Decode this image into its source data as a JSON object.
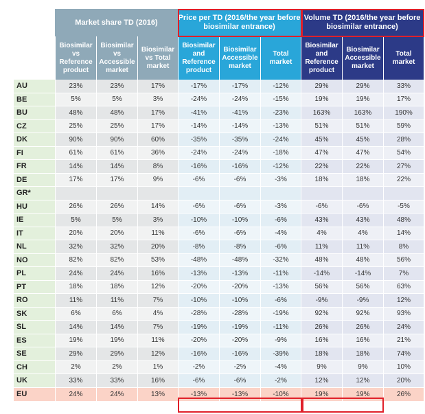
{
  "groups": [
    {
      "title": "Market share TD (2016)"
    },
    {
      "title": "Price per TD (2016/the year before biosimilar entrance)"
    },
    {
      "title": "Volume TD (2016/the year before biosimilar entrance)"
    }
  ],
  "subheaders": [
    "Biosimilar vs Reference product",
    "Biosimilar vs Accessible market",
    "Biosimilar vs Total market",
    "Biosimilar and Reference product",
    "Biosimilar Accessible market",
    "Total market",
    "Biosimilar and Reference product",
    "Biosimilar Accessible market",
    "Total market"
  ],
  "rows": [
    {
      "country": "AU",
      "values": [
        "23%",
        "23%",
        "17%",
        "-17%",
        "-17%",
        "-12%",
        "29%",
        "29%",
        "33%"
      ]
    },
    {
      "country": "BE",
      "values": [
        "5%",
        "5%",
        "3%",
        "-24%",
        "-24%",
        "-15%",
        "19%",
        "19%",
        "17%"
      ]
    },
    {
      "country": "BU",
      "values": [
        "48%",
        "48%",
        "17%",
        "-41%",
        "-41%",
        "-23%",
        "163%",
        "163%",
        "190%"
      ]
    },
    {
      "country": "CZ",
      "values": [
        "25%",
        "25%",
        "17%",
        "-14%",
        "-14%",
        "-13%",
        "51%",
        "51%",
        "59%"
      ]
    },
    {
      "country": "DK",
      "values": [
        "90%",
        "90%",
        "60%",
        "-35%",
        "-35%",
        "-24%",
        "45%",
        "45%",
        "28%"
      ]
    },
    {
      "country": "FI",
      "values": [
        "61%",
        "61%",
        "36%",
        "-24%",
        "-24%",
        "-18%",
        "47%",
        "47%",
        "54%"
      ]
    },
    {
      "country": "FR",
      "values": [
        "14%",
        "14%",
        "8%",
        "-16%",
        "-16%",
        "-12%",
        "22%",
        "22%",
        "27%"
      ]
    },
    {
      "country": "DE",
      "values": [
        "17%",
        "17%",
        "9%",
        "-6%",
        "-6%",
        "-3%",
        "18%",
        "18%",
        "22%"
      ]
    },
    {
      "country": "GR*",
      "values": [
        "",
        "",
        "",
        "",
        "",
        "",
        "",
        "",
        ""
      ]
    },
    {
      "country": "HU",
      "values": [
        "26%",
        "26%",
        "14%",
        "-6%",
        "-6%",
        "-3%",
        "-6%",
        "-6%",
        "-5%"
      ]
    },
    {
      "country": "IE",
      "values": [
        "5%",
        "5%",
        "3%",
        "-10%",
        "-10%",
        "-6%",
        "43%",
        "43%",
        "48%"
      ]
    },
    {
      "country": "IT",
      "values": [
        "20%",
        "20%",
        "11%",
        "-6%",
        "-6%",
        "-4%",
        "4%",
        "4%",
        "14%"
      ]
    },
    {
      "country": "NL",
      "values": [
        "32%",
        "32%",
        "20%",
        "-8%",
        "-8%",
        "-6%",
        "11%",
        "11%",
        "8%"
      ]
    },
    {
      "country": "NO",
      "values": [
        "82%",
        "82%",
        "53%",
        "-48%",
        "-48%",
        "-32%",
        "48%",
        "48%",
        "56%"
      ]
    },
    {
      "country": "PL",
      "values": [
        "24%",
        "24%",
        "16%",
        "-13%",
        "-13%",
        "-11%",
        "-14%",
        "-14%",
        "7%"
      ]
    },
    {
      "country": "PT",
      "values": [
        "18%",
        "18%",
        "12%",
        "-20%",
        "-20%",
        "-13%",
        "56%",
        "56%",
        "63%"
      ]
    },
    {
      "country": "RO",
      "values": [
        "11%",
        "11%",
        "7%",
        "-10%",
        "-10%",
        "-6%",
        "-9%",
        "-9%",
        "12%"
      ]
    },
    {
      "country": "SK",
      "values": [
        "6%",
        "6%",
        "4%",
        "-28%",
        "-28%",
        "-19%",
        "92%",
        "92%",
        "93%"
      ]
    },
    {
      "country": "SL",
      "values": [
        "14%",
        "14%",
        "7%",
        "-19%",
        "-19%",
        "-11%",
        "26%",
        "26%",
        "24%"
      ]
    },
    {
      "country": "ES",
      "values": [
        "19%",
        "19%",
        "11%",
        "-20%",
        "-20%",
        "-9%",
        "16%",
        "16%",
        "21%"
      ]
    },
    {
      "country": "SE",
      "values": [
        "29%",
        "29%",
        "12%",
        "-16%",
        "-16%",
        "-39%",
        "18%",
        "18%",
        "74%"
      ]
    },
    {
      "country": "CH",
      "values": [
        "2%",
        "2%",
        "1%",
        "-2%",
        "-2%",
        "-4%",
        "9%",
        "9%",
        "10%"
      ]
    },
    {
      "country": "UK",
      "values": [
        "33%",
        "33%",
        "16%",
        "-6%",
        "-6%",
        "-2%",
        "12%",
        "12%",
        "20%"
      ]
    }
  ],
  "eu": {
    "country": "EU",
    "values": [
      "24%",
      "24%",
      "13%",
      "-13%",
      "-13%",
      "-10%",
      "19%",
      "19%",
      "26%"
    ]
  },
  "colors": {
    "market_share_header": "#8fa9b8",
    "price_header": "#29a6d9",
    "volume_header": "#2c3a87",
    "highlight": "#e0202a",
    "eu_row": "#fbd3c7"
  }
}
